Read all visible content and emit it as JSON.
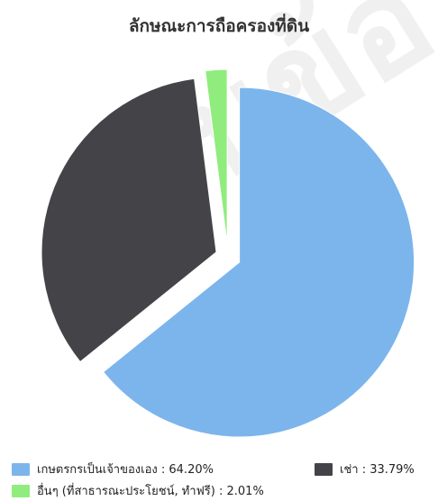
{
  "chart_data": {
    "type": "pie",
    "title": "ลักษณะการถือครองที่ดิน",
    "slices": [
      {
        "label": "เกษตรกรเป็นเจ้าของเอง",
        "value": 64.2,
        "color": "#7cb5ec",
        "legend_text": "เกษตรกรเป็นเจ้าของเอง : 64.20%"
      },
      {
        "label": "เช่า",
        "value": 33.79,
        "color": "#434348",
        "legend_text": "เช่า : 33.79%"
      },
      {
        "label": "อื่นๆ (ที่สาธารณะประโยชน์, ทำฟรี)",
        "value": 2.01,
        "color": "#90ed7d",
        "legend_text": "อื่นๆ (ที่สาธารณะประโยชน์, ทำฟรี) : 2.01%"
      }
    ],
    "legend_position": "bottom",
    "exploded": true
  },
  "watermark_text": "ฐานข้อมูล"
}
